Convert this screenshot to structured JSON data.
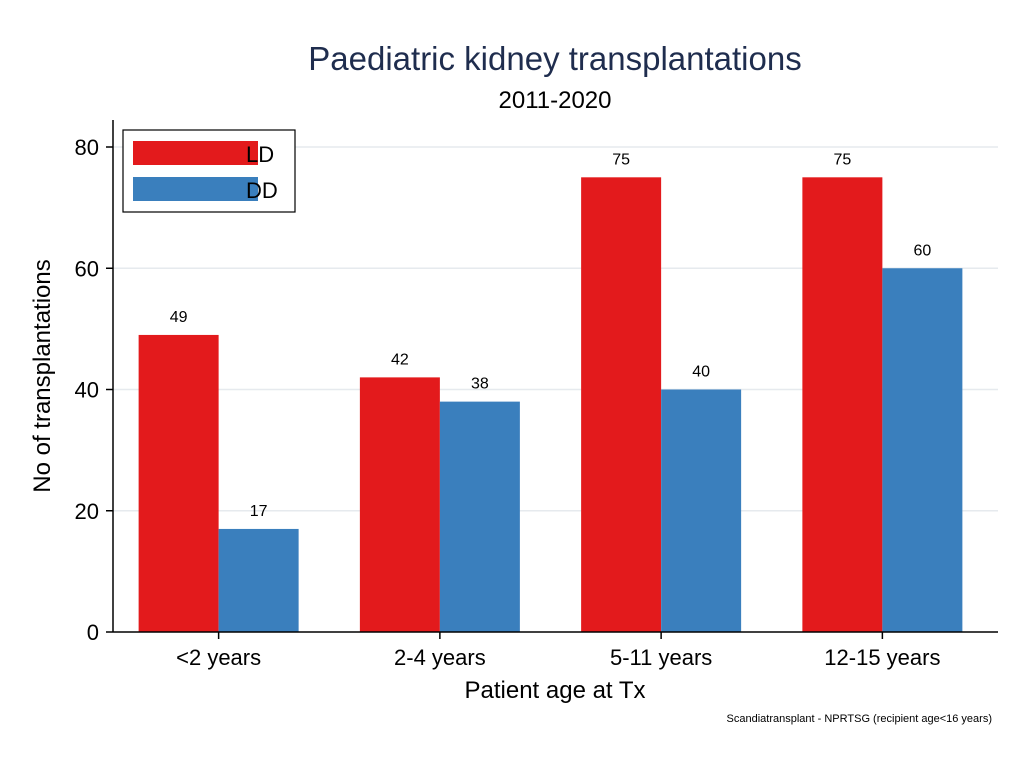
{
  "chart_data": {
    "type": "bar",
    "title": "Paediatric kidney transplantations",
    "subtitle": "2011-2020",
    "xlabel": "Patient age at Tx",
    "ylabel": "No of transplantations",
    "categories": [
      "<2 years",
      "2-4 years",
      "5-11 years",
      "12-15 years"
    ],
    "series": [
      {
        "name": "LD",
        "color": "#e31a1c",
        "values": [
          49,
          42,
          75,
          75
        ]
      },
      {
        "name": "DD",
        "color": "#3a7fbd",
        "values": [
          17,
          38,
          40,
          60
        ]
      }
    ],
    "ylim": [
      0,
      80
    ],
    "yticks": [
      0,
      20,
      40,
      60,
      80
    ],
    "grid": true,
    "legend_position": "top-left",
    "note": "Scandiatransplant - NPRTSG (recipient age<16 years)"
  }
}
